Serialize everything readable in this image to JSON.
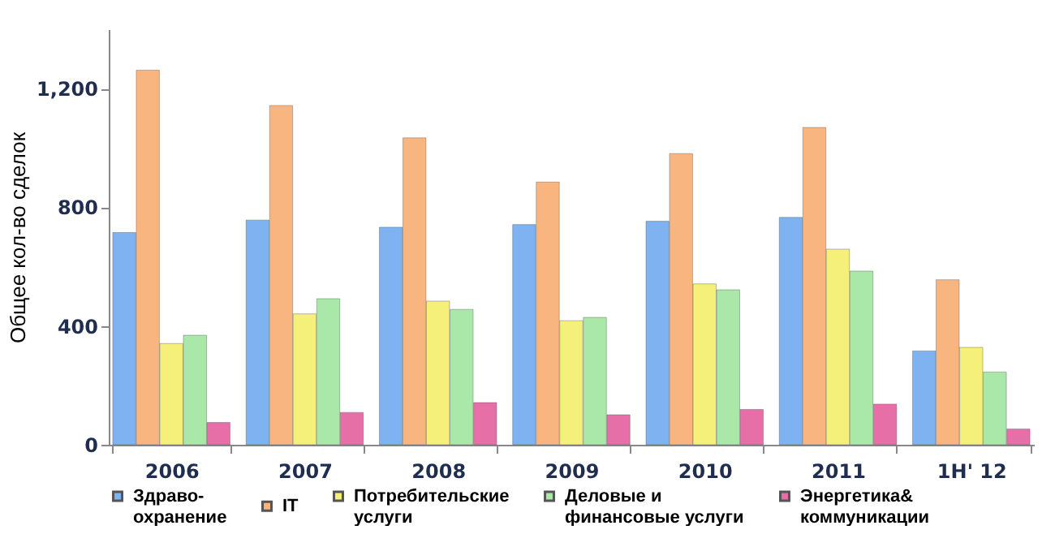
{
  "chart_data": {
    "type": "bar",
    "ylabel": "Общее кол-во сделок",
    "categories": [
      "2006",
      "2007",
      "2008",
      "2009",
      "2010",
      "2011",
      "1H' 12"
    ],
    "series": [
      {
        "name": "Здраво-\nохранение",
        "color": "#7fb2f0",
        "values": [
          715,
          757,
          733,
          742,
          753,
          766,
          316
        ]
      },
      {
        "name": "IT",
        "color": "#f9b57f",
        "values": [
          1262,
          1143,
          1034,
          885,
          981,
          1069,
          556
        ]
      },
      {
        "name": "Потребительские\nуслуги",
        "color": "#f5f07a",
        "values": [
          341,
          441,
          484,
          418,
          542,
          659,
          328
        ]
      },
      {
        "name": "Деловые и\nфинансовые услуги",
        "color": "#a9e8a9",
        "values": [
          369,
          492,
          456,
          429,
          522,
          585,
          245
        ]
      },
      {
        "name": "Энергетика&\nкоммуникации",
        "color": "#e76fa8",
        "values": [
          75,
          109,
          142,
          101,
          119,
          137,
          53
        ]
      }
    ],
    "ylim": [
      0,
      1400
    ],
    "yticks": [
      0,
      400,
      800,
      {
        "value": 1200,
        "label": "1,200"
      }
    ],
    "grid": false,
    "legend": "bottom"
  }
}
